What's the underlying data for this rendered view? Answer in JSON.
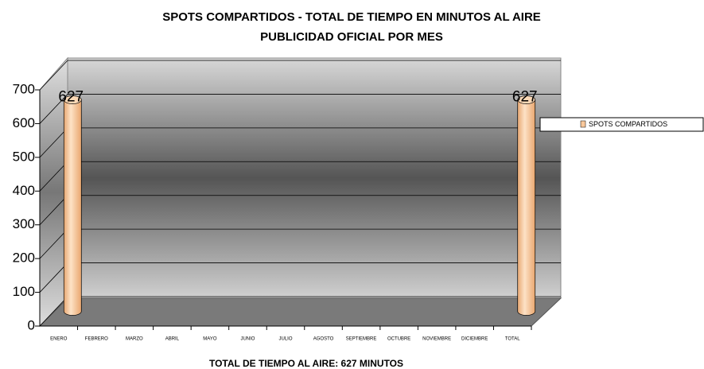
{
  "chart_data": {
    "type": "bar3d",
    "title": "SPOTS COMPARTIDOS - TOTAL DE TIEMPO EN MINUTOS AL AIRE",
    "subtitle": "PUBLICIDAD OFICIAL POR MES",
    "footnote": "TOTAL DE TIEMPO AL AIRE: 627 MINUTOS",
    "categories": [
      "ENERO",
      "FEBRERO",
      "MARZO",
      "ABRIL",
      "MAYO",
      "JUNIO",
      "JULIO",
      "AGOSTO",
      "SEPTIEMBRE",
      "OCTUBRE",
      "NOVIEMBRE",
      "DICIEMBRE",
      "TOTAL"
    ],
    "series": [
      {
        "name": "SPOTS COMPARTIDOS",
        "color": "#f9c89b",
        "values": [
          627,
          null,
          null,
          null,
          null,
          null,
          null,
          null,
          null,
          null,
          null,
          null,
          627
        ]
      }
    ],
    "ylim": [
      0,
      700
    ],
    "yticks": [
      0,
      100,
      200,
      300,
      400,
      500,
      600,
      700
    ],
    "grid": true,
    "legend": "right",
    "data_labels": true
  }
}
